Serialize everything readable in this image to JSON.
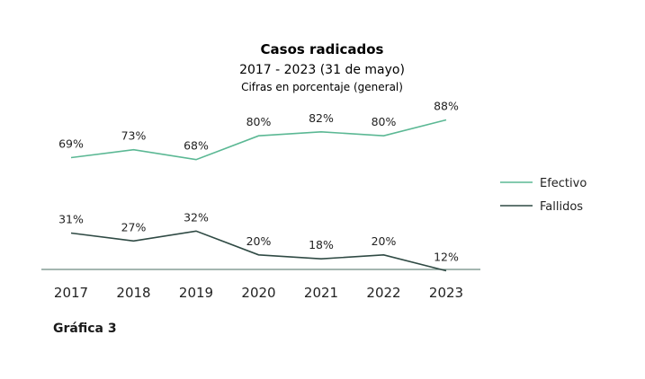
{
  "caption": "Gráfica 3",
  "chart_data": {
    "type": "line",
    "title": "Casos radicados",
    "subtitle": "2017 - 2023 (31 de mayo)",
    "note": "Cifras en porcentaje (general)",
    "categories": [
      "2017",
      "2018",
      "2019",
      "2020",
      "2021",
      "2022",
      "2023"
    ],
    "series": [
      {
        "name": "Efectivo",
        "color": "#5bb894",
        "values": [
          69,
          73,
          68,
          80,
          82,
          80,
          88
        ],
        "labels": [
          "69%",
          "73%",
          "68%",
          "80%",
          "82%",
          "80%",
          "88%"
        ]
      },
      {
        "name": "Fallidos",
        "color": "#2f4a44",
        "values": [
          31,
          27,
          32,
          20,
          18,
          20,
          12
        ],
        "labels": [
          "31%",
          "27%",
          "32%",
          "20%",
          "18%",
          "20%",
          "12%"
        ]
      }
    ],
    "ylim": [
      0,
      100
    ],
    "grid": false,
    "legend_position": "right",
    "axis_color": "#6e8a80"
  }
}
